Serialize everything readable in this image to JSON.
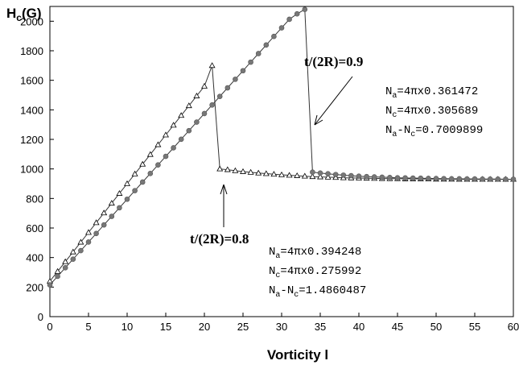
{
  "chart_data": {
    "type": "line",
    "ylabel_main": "H",
    "ylabel_sub": "c",
    "ylabel_tail": "(G)",
    "xlabel": "Vorticity l",
    "xlim": [
      0,
      60
    ],
    "ylim": [
      0,
      2100
    ],
    "xticks": [
      0,
      5,
      10,
      15,
      20,
      25,
      30,
      35,
      40,
      45,
      50,
      55,
      60
    ],
    "yticks": [
      0,
      200,
      400,
      600,
      800,
      1000,
      1200,
      1400,
      1600,
      1800,
      2000
    ],
    "grid": false,
    "series": [
      {
        "marker": "triangle",
        "x": [
          0,
          1,
          2,
          3,
          4,
          5,
          6,
          7,
          8,
          9,
          10,
          11,
          12,
          13,
          14,
          15,
          16,
          17,
          18,
          19,
          20,
          21,
          22,
          23,
          24,
          25,
          26,
          27,
          28,
          29,
          30,
          31,
          32,
          33,
          34,
          35,
          36,
          37,
          38,
          39,
          40,
          41,
          42,
          43,
          44,
          45,
          46,
          47,
          48,
          49,
          50,
          51,
          52,
          53,
          54,
          55,
          56,
          57,
          58,
          59,
          60
        ],
        "y": [
          240,
          306,
          372,
          438,
          504,
          570,
          636,
          702,
          768,
          834,
          900,
          966,
          1032,
          1098,
          1164,
          1230,
          1296,
          1362,
          1428,
          1494,
          1560,
          1700,
          1000,
          995,
          988,
          982,
          977,
          972,
          968,
          964,
          960,
          957,
          954,
          951,
          948,
          946,
          944,
          942,
          940,
          939,
          938,
          937,
          936,
          935,
          934,
          934,
          933,
          933,
          932,
          932,
          931,
          931,
          931,
          930,
          930,
          930,
          930,
          930,
          930,
          930,
          930
        ]
      },
      {
        "marker": "circle",
        "x": [
          0,
          1,
          2,
          3,
          4,
          5,
          6,
          7,
          8,
          9,
          10,
          11,
          12,
          13,
          14,
          15,
          16,
          17,
          18,
          19,
          20,
          21,
          22,
          23,
          24,
          25,
          26,
          27,
          28,
          29,
          30,
          31,
          32,
          33,
          34,
          35,
          36,
          37,
          38,
          39,
          40,
          41,
          42,
          43,
          44,
          45,
          46,
          47,
          48,
          49,
          50,
          51,
          52,
          53,
          54,
          55,
          56,
          57,
          58,
          59,
          60
        ],
        "y": [
          215,
          273,
          331,
          389,
          447,
          505,
          563,
          621,
          679,
          737,
          795,
          853,
          911,
          969,
          1027,
          1085,
          1143,
          1201,
          1259,
          1317,
          1375,
          1433,
          1491,
          1549,
          1607,
          1665,
          1723,
          1781,
          1839,
          1897,
          1955,
          2013,
          2050,
          2080,
          978,
          972,
          967,
          962,
          958,
          954,
          951,
          948,
          946,
          944,
          942,
          940,
          939,
          938,
          937,
          936,
          935,
          934,
          933,
          933,
          932,
          932,
          931,
          931,
          931,
          930,
          930
        ]
      }
    ],
    "annotations": [
      {
        "label": "t/(2R)=0.9",
        "lines": [
          {
            "main": "N",
            "sub": "a",
            "rest": "=4πx0.361472"
          },
          {
            "main": "N",
            "sub": "c",
            "rest": "=4πx0.305689"
          },
          {
            "main": "N",
            "sub": "a",
            "mid": "-N",
            "sub2": "c",
            "rest": "=0.7009899"
          }
        ]
      },
      {
        "label": "t/(2R)=0.8",
        "lines": [
          {
            "main": "N",
            "sub": "a",
            "rest": "=4πx0.394248"
          },
          {
            "main": "N",
            "sub": "c",
            "rest": "=4πx0.275992"
          },
          {
            "main": "N",
            "sub": "a",
            "mid": "-N",
            "sub2": "c",
            "rest": "=1.4860487"
          }
        ]
      }
    ]
  }
}
